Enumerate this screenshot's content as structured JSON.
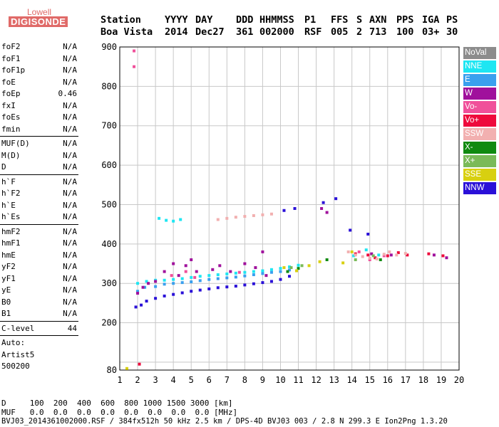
{
  "logo": {
    "line1": "Lowell",
    "line2": "DIGISONDE"
  },
  "header": {
    "row1": [
      "Station",
      "YYYY",
      "DAY",
      "DDD",
      "HHMMSS",
      "P1",
      "FFS",
      "S",
      "AXN",
      "PPS",
      "IGA",
      "PS"
    ],
    "row2": [
      "Boa Vista",
      "2014",
      "Dec27",
      "361",
      "002000",
      "RSF",
      "005",
      "2",
      "713",
      "100",
      "03+",
      "30"
    ]
  },
  "params": {
    "group1": [
      {
        "label": "foF2",
        "value": "N/A"
      },
      {
        "label": "foF1",
        "value": "N/A"
      },
      {
        "label": "foF1p",
        "value": "N/A"
      },
      {
        "label": "foE",
        "value": "N/A"
      },
      {
        "label": "foEp",
        "value": "0.46"
      },
      {
        "label": "fxI",
        "value": "N/A"
      },
      {
        "label": "foEs",
        "value": "N/A"
      },
      {
        "label": "fmin",
        "value": "N/A"
      }
    ],
    "group2": [
      {
        "label": "MUF(D)",
        "value": "N/A"
      },
      {
        "label": "M(D)",
        "value": "N/A"
      },
      {
        "label": "D",
        "value": "N/A"
      }
    ],
    "group3": [
      {
        "label": "h`F",
        "value": "N/A"
      },
      {
        "label": "h`F2",
        "value": "N/A"
      },
      {
        "label": "h`E",
        "value": "N/A"
      },
      {
        "label": "h`Es",
        "value": "N/A"
      }
    ],
    "group4": [
      {
        "label": "hmF2",
        "value": "N/A"
      },
      {
        "label": "hmF1",
        "value": "N/A"
      },
      {
        "label": "hmE",
        "value": "N/A"
      },
      {
        "label": "yF2",
        "value": "N/A"
      },
      {
        "label": "yF1",
        "value": "N/A"
      },
      {
        "label": "yE",
        "value": "N/A"
      },
      {
        "label": "B0",
        "value": "N/A"
      },
      {
        "label": "B1",
        "value": "N/A"
      }
    ],
    "group5": [
      {
        "label": "C-level",
        "value": "44"
      }
    ],
    "auto": [
      "Auto:",
      "Artist5",
      "500200"
    ]
  },
  "footer": {
    "line1": "D     100  200  400  600  800 1000 1500 3000 [km]",
    "line2": "MUF   0.0  0.0  0.0  0.0  0.0  0.0  0.0  0.0 [MHz]",
    "line3": "BVJ03_2014361002000.RSF / 384fx512h 50 kHz 2.5 km / DPS-4D BVJ03 003 / 2.8 N 299.3 E Ion2Png 1.3.20"
  },
  "legend": [
    {
      "label": "NoVal",
      "color": "#8c8c8c"
    },
    {
      "label": "NNE",
      "color": "#1ee6f2"
    },
    {
      "label": "E",
      "color": "#3aa0ee"
    },
    {
      "label": "W",
      "color": "#a0109c"
    },
    {
      "label": "Vo-",
      "color": "#f0509a"
    },
    {
      "label": "Vo+",
      "color": "#ee0a3c"
    },
    {
      "label": "SSW",
      "color": "#f2b0b0"
    },
    {
      "label": "X-",
      "color": "#108a10"
    },
    {
      "label": "X+",
      "color": "#7aba58"
    },
    {
      "label": "SSE",
      "color": "#d8d010"
    },
    {
      "label": "NNW",
      "color": "#2a10d8"
    }
  ],
  "chart_data": {
    "type": "scatter",
    "xlim": [
      1,
      20
    ],
    "ylim": [
      80,
      900
    ],
    "xticks": [
      1,
      2,
      3,
      4,
      5,
      6,
      7,
      8,
      9,
      10,
      11,
      12,
      13,
      14,
      15,
      16,
      17,
      18,
      19,
      20
    ],
    "yticks": [
      100,
      200,
      300,
      400,
      500,
      600,
      700,
      800,
      900
    ],
    "ytick_labels": [
      "",
      "200",
      "300",
      "400",
      "500",
      "600",
      "700",
      "800",
      "900"
    ],
    "bottom_label": "80",
    "grid": true,
    "series": [
      {
        "name": "NNW",
        "color": "#2a10d8",
        "points": [
          [
            1.9,
            240
          ],
          [
            2.2,
            245
          ],
          [
            2.5,
            255
          ],
          [
            3.0,
            262
          ],
          [
            3.5,
            268
          ],
          [
            4.0,
            272
          ],
          [
            4.5,
            276
          ],
          [
            5.0,
            280
          ],
          [
            5.5,
            283
          ],
          [
            6.0,
            286
          ],
          [
            6.5,
            289
          ],
          [
            7.0,
            291
          ],
          [
            7.5,
            293
          ],
          [
            8.0,
            296
          ],
          [
            8.5,
            299
          ],
          [
            9.0,
            302
          ],
          [
            9.5,
            305
          ],
          [
            10.0,
            310
          ],
          [
            10.5,
            318
          ],
          [
            10.2,
            485
          ],
          [
            10.8,
            490
          ],
          [
            12.4,
            505
          ],
          [
            13.1,
            515
          ],
          [
            14.9,
            425
          ],
          [
            13.9,
            435
          ]
        ]
      },
      {
        "name": "NNE",
        "color": "#1ee6f2",
        "points": [
          [
            2.0,
            300
          ],
          [
            2.5,
            305
          ],
          [
            3.0,
            308
          ],
          [
            3.5,
            308
          ],
          [
            4.0,
            310
          ],
          [
            4.5,
            312
          ],
          [
            5.0,
            315
          ],
          [
            5.5,
            318
          ],
          [
            6.0,
            320
          ],
          [
            6.5,
            322
          ],
          [
            7.0,
            324
          ],
          [
            7.5,
            326
          ],
          [
            8.0,
            328
          ],
          [
            8.5,
            330
          ],
          [
            9.0,
            332
          ],
          [
            9.5,
            335
          ],
          [
            10.0,
            338
          ],
          [
            10.5,
            342
          ],
          [
            11.0,
            346
          ],
          [
            3.2,
            465
          ],
          [
            3.6,
            460
          ],
          [
            4.0,
            458
          ],
          [
            4.4,
            462
          ],
          [
            14.1,
            370
          ],
          [
            14.8,
            385
          ],
          [
            15.5,
            372
          ]
        ]
      },
      {
        "name": "E",
        "color": "#3aa0ee",
        "points": [
          [
            2.0,
            280
          ],
          [
            2.4,
            290
          ],
          [
            3.0,
            292
          ],
          [
            3.5,
            298
          ],
          [
            4.0,
            300
          ],
          [
            4.5,
            302
          ],
          [
            5.0,
            304
          ],
          [
            5.5,
            307
          ],
          [
            6.0,
            310
          ],
          [
            6.5,
            312
          ],
          [
            7.0,
            314
          ],
          [
            7.5,
            316
          ],
          [
            8.0,
            319
          ],
          [
            8.5,
            322
          ],
          [
            9.0,
            325
          ],
          [
            9.5,
            328
          ],
          [
            10.0,
            330
          ],
          [
            10.5,
            334
          ]
        ]
      },
      {
        "name": "W",
        "color": "#a0109c",
        "points": [
          [
            2.0,
            275
          ],
          [
            2.3,
            290
          ],
          [
            2.6,
            300
          ],
          [
            3.0,
            305
          ],
          [
            3.5,
            330
          ],
          [
            4.0,
            350
          ],
          [
            4.3,
            320
          ],
          [
            4.7,
            345
          ],
          [
            5.0,
            360
          ],
          [
            5.3,
            330
          ],
          [
            6.2,
            335
          ],
          [
            6.6,
            345
          ],
          [
            7.2,
            330
          ],
          [
            8.0,
            350
          ],
          [
            8.6,
            340
          ],
          [
            9.0,
            380
          ],
          [
            9.2,
            320
          ],
          [
            12.3,
            490
          ],
          [
            12.6,
            480
          ],
          [
            15.1,
            375
          ],
          [
            16.2,
            372
          ],
          [
            18.6,
            372
          ],
          [
            19.3,
            365
          ]
        ]
      },
      {
        "name": "Vo-",
        "color": "#f0509a",
        "points": [
          [
            1.8,
            890
          ],
          [
            1.8,
            850
          ],
          [
            3.9,
            320
          ],
          [
            4.7,
            330
          ],
          [
            5.2,
            315
          ],
          [
            7.7,
            328
          ],
          [
            14.4,
            380
          ],
          [
            15.0,
            360
          ],
          [
            15.8,
            370
          ]
        ]
      },
      {
        "name": "Vo+",
        "color": "#ee0a3c",
        "points": [
          [
            2.1,
            95
          ],
          [
            14.2,
            375
          ],
          [
            14.9,
            372
          ],
          [
            15.3,
            365
          ],
          [
            16.0,
            370
          ],
          [
            16.6,
            378
          ],
          [
            17.1,
            372
          ],
          [
            18.3,
            375
          ],
          [
            19.1,
            370
          ]
        ]
      },
      {
        "name": "SSW",
        "color": "#f2b0b0",
        "points": [
          [
            6.5,
            462
          ],
          [
            7.0,
            465
          ],
          [
            7.5,
            468
          ],
          [
            8.0,
            470
          ],
          [
            8.5,
            472
          ],
          [
            9.0,
            474
          ],
          [
            9.5,
            476
          ],
          [
            13.8,
            380
          ],
          [
            14.2,
            372
          ],
          [
            14.6,
            368
          ],
          [
            15.0,
            364
          ],
          [
            15.4,
            362
          ],
          [
            15.8,
            374
          ],
          [
            16.1,
            380
          ],
          [
            16.5,
            372
          ],
          [
            17.0,
            376
          ]
        ]
      },
      {
        "name": "X-",
        "color": "#108a10",
        "points": [
          [
            10.4,
            330
          ],
          [
            11.0,
            338
          ],
          [
            12.6,
            360
          ],
          [
            15.6,
            360
          ]
        ]
      },
      {
        "name": "X+",
        "color": "#7aba58",
        "points": [
          [
            10.6,
            340
          ],
          [
            11.2,
            345
          ],
          [
            14.2,
            360
          ],
          [
            15.2,
            370
          ]
        ]
      },
      {
        "name": "SSE",
        "color": "#d8d010",
        "points": [
          [
            1.4,
            84
          ],
          [
            10.2,
            340
          ],
          [
            10.9,
            332
          ],
          [
            11.6,
            345
          ],
          [
            12.2,
            355
          ],
          [
            13.5,
            352
          ],
          [
            14.0,
            380
          ]
        ]
      }
    ]
  }
}
